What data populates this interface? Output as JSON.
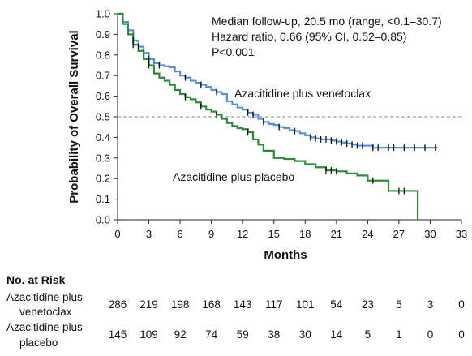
{
  "chart_data": {
    "type": "line",
    "subtype": "kaplan-meier",
    "xlabel": "Months",
    "ylabel": "Probability of Overall Survival",
    "xlim": [
      0,
      33
    ],
    "ylim": [
      0,
      1.0
    ],
    "x_ticks": [
      "0",
      "3",
      "6",
      "9",
      "12",
      "15",
      "18",
      "21",
      "24",
      "27",
      "30",
      "33"
    ],
    "y_ticks": [
      "0.0",
      "0.1",
      "0.2",
      "0.3",
      "0.4",
      "0.5",
      "0.6",
      "0.7",
      "0.8",
      "0.9",
      "1.0"
    ],
    "reference_line": {
      "y": 0.5,
      "style": "dashed",
      "color": "#9a9a9a"
    },
    "grid": false,
    "annotations": [
      "Median follow-up, 20.5 mo (range, <0.1–30.7)",
      "Hazard ratio, 0.66 (95% CI, 0.52–0.85)",
      "P<0.001"
    ],
    "series": [
      {
        "name": "Azacitidine plus venetoclax",
        "color": "#5b8fd4",
        "x": [
          0,
          0.5,
          1,
          1.5,
          2,
          2.5,
          3,
          3.5,
          4,
          4.5,
          5,
          5.5,
          6,
          6.5,
          7,
          7.5,
          8,
          8.5,
          9,
          9.5,
          10,
          10.5,
          11,
          11.5,
          12,
          12.5,
          13,
          13.5,
          14,
          14.5,
          15,
          15.5,
          16,
          16.5,
          17,
          17.5,
          18,
          18.5,
          19,
          19.5,
          20,
          20.5,
          21,
          21.5,
          22,
          22.5,
          23,
          23.5,
          24,
          24.5,
          25,
          26,
          27,
          28,
          29,
          30,
          30.7
        ],
        "y": [
          1.0,
          0.96,
          0.92,
          0.87,
          0.84,
          0.81,
          0.78,
          0.76,
          0.75,
          0.745,
          0.74,
          0.72,
          0.7,
          0.69,
          0.675,
          0.665,
          0.655,
          0.645,
          0.63,
          0.62,
          0.61,
          0.575,
          0.56,
          0.545,
          0.535,
          0.52,
          0.51,
          0.49,
          0.475,
          0.465,
          0.46,
          0.45,
          0.445,
          0.435,
          0.43,
          0.42,
          0.41,
          0.4,
          0.395,
          0.39,
          0.39,
          0.385,
          0.38,
          0.375,
          0.37,
          0.365,
          0.36,
          0.36,
          0.36,
          0.35,
          0.35,
          0.35,
          0.35,
          0.35,
          0.35,
          0.35,
          0.35
        ],
        "censor_x": [
          1.5,
          2,
          3,
          4,
          6.5,
          8,
          9.5,
          12.5,
          13,
          14,
          15.5,
          17,
          18.5,
          19,
          19.5,
          20,
          20.5,
          21,
          21.5,
          22,
          22.5,
          23,
          23.5,
          24.5,
          25,
          26,
          26.5,
          27.5,
          28.5,
          29.5,
          30.5
        ]
      },
      {
        "name": "Azacitidine plus placebo",
        "color": "#2e8a3a",
        "x": [
          0,
          0.5,
          1,
          1.5,
          2,
          2.5,
          3,
          3.5,
          4,
          4.5,
          5,
          5.5,
          6,
          6.5,
          7,
          7.5,
          8,
          8.5,
          9,
          9.5,
          10,
          10.5,
          11,
          11.5,
          12,
          12.5,
          13,
          13.5,
          14,
          15,
          16,
          17,
          18,
          19,
          20,
          21,
          22,
          23,
          24,
          25,
          26,
          27,
          28,
          28.8
        ],
        "y": [
          1.0,
          0.95,
          0.9,
          0.85,
          0.82,
          0.78,
          0.75,
          0.71,
          0.69,
          0.675,
          0.655,
          0.63,
          0.61,
          0.595,
          0.585,
          0.57,
          0.55,
          0.535,
          0.525,
          0.51,
          0.49,
          0.47,
          0.455,
          0.445,
          0.44,
          0.425,
          0.39,
          0.365,
          0.335,
          0.3,
          0.295,
          0.285,
          0.27,
          0.255,
          0.24,
          0.235,
          0.225,
          0.215,
          0.19,
          0.19,
          0.14,
          0.14,
          0.14,
          0.0
        ],
        "censor_x": [
          1.5,
          3,
          6.5,
          8,
          9.5,
          12.5,
          20,
          20.5,
          21,
          24.5,
          27,
          27.5
        ]
      }
    ],
    "series_labels": [
      {
        "text": "Azacitidine plus venetoclax",
        "x": 11.8,
        "y": 0.6
      },
      {
        "text": "Azacitidine plus placebo",
        "x": 5.5,
        "y": 0.19
      }
    ]
  },
  "risk_table": {
    "title": "No. at Risk",
    "rows": [
      {
        "label_line1": "Azacitidine plus",
        "label_line2": "venetoclax",
        "values": [
          "286",
          "219",
          "198",
          "168",
          "143",
          "117",
          "101",
          "54",
          "23",
          "5",
          "3",
          "0"
        ]
      },
      {
        "label_line1": "Azacitidine plus",
        "label_line2": "placebo",
        "values": [
          "145",
          "109",
          "92",
          "74",
          "59",
          "38",
          "30",
          "14",
          "5",
          "1",
          "0",
          "0"
        ]
      }
    ]
  }
}
